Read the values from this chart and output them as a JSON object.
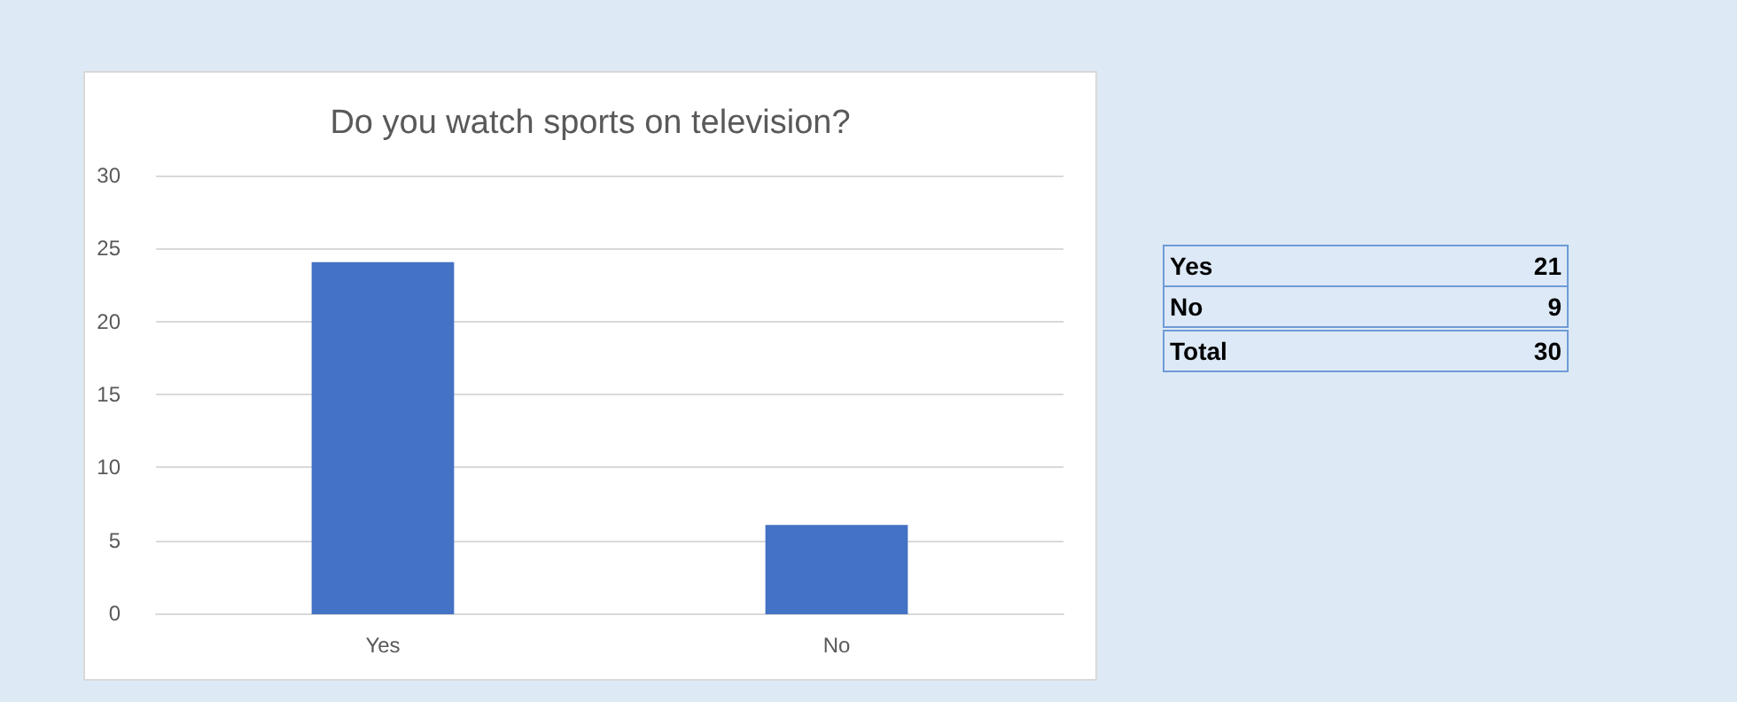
{
  "chart_data": [
    {
      "type": "bar",
      "title": "Do you watch sports on television?",
      "categories": [
        "Yes",
        "No"
      ],
      "values": [
        24,
        6
      ],
      "color": "#4472c4",
      "ylim": [
        0,
        30
      ],
      "yticks": [
        0,
        5,
        10,
        15,
        20,
        25,
        30
      ],
      "grid": "y"
    },
    {
      "type": "other",
      "categories": [
        "Yes",
        "No",
        "Total"
      ],
      "values": [
        21,
        9,
        30
      ],
      "data_labels": true
    }
  ]
}
